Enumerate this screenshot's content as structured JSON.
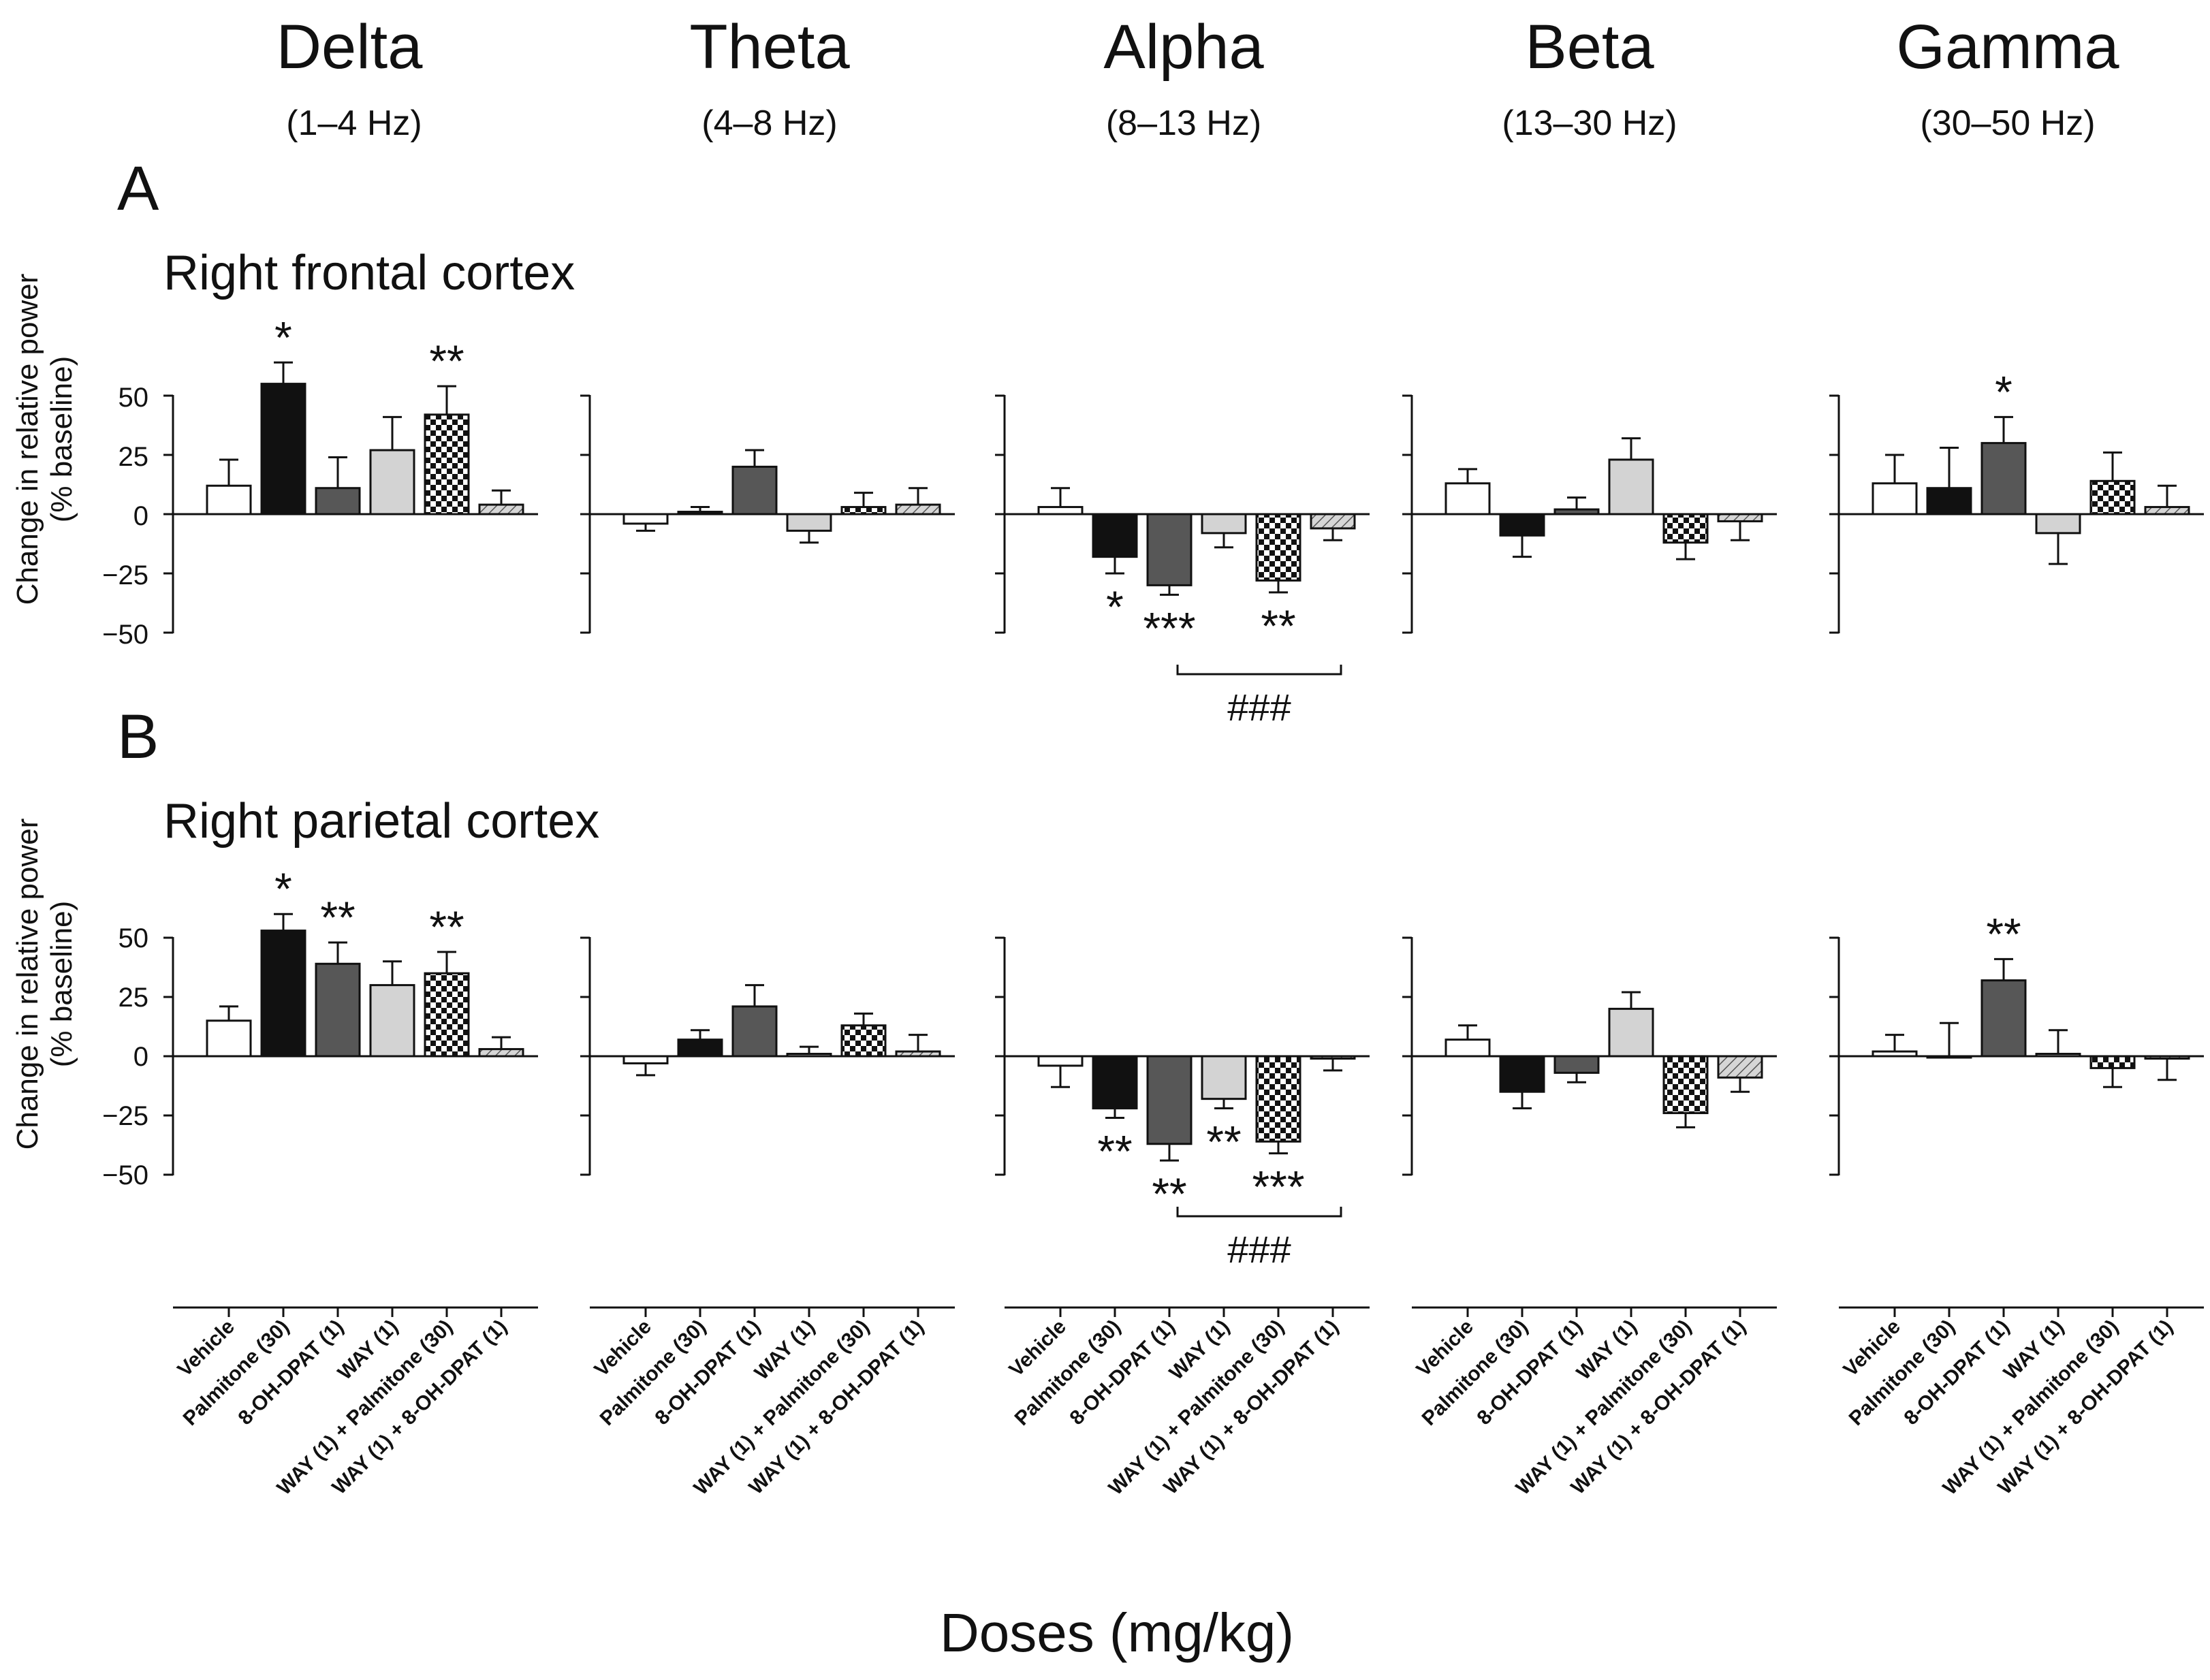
{
  "figure": {
    "panels": [
      "A",
      "B"
    ],
    "regions": [
      "Right frontal cortex",
      "Right parietal cortex"
    ],
    "xlabel": "Doses (mg/kg)",
    "ylabel": [
      "Change in relative power",
      "(% baseline)"
    ],
    "yticks": [
      "50",
      "25",
      "0",
      "−25",
      "−50"
    ]
  },
  "chart_data": {
    "type": "bar",
    "ylim": [
      -50,
      50
    ],
    "yticks": [
      50,
      25,
      0,
      -25,
      -50
    ],
    "grid": false,
    "x_axis_title": "Doses (mg/kg)",
    "y_axis_title": "Change in relative power (% baseline)",
    "categories": [
      "Vehicle",
      "Palmitone (30)",
      "8-OH-DPAT (1)",
      "WAY (1)",
      "WAY (1) + Palmitone (30)",
      "WAY (1) + 8-OH-DPAT (1)"
    ],
    "fills": [
      "white",
      "black",
      "dark-gray",
      "light-gray",
      "checker",
      "hatched"
    ],
    "bands": [
      {
        "name": "Delta",
        "range": "(1–4 Hz)"
      },
      {
        "name": "Theta",
        "range": "(4–8 Hz)"
      },
      {
        "name": "Alpha",
        "range": "(8–13 Hz)"
      },
      {
        "name": "Beta",
        "range": "(13–30 Hz)"
      },
      {
        "name": "Gamma",
        "range": "(30–50 Hz)"
      }
    ],
    "panels": [
      {
        "label": "A",
        "title": "Right frontal cortex",
        "bands": [
          {
            "values": [
              12,
              55,
              11,
              27,
              42,
              4
            ],
            "errors": [
              11,
              9,
              13,
              14,
              12,
              6
            ],
            "stars": [
              "",
              "*",
              "",
              "",
              "**",
              ""
            ]
          },
          {
            "values": [
              -4,
              1,
              20,
              -7,
              3,
              4
            ],
            "errors": [
              3,
              2,
              7,
              5,
              6,
              7
            ],
            "stars": [
              "",
              "",
              "",
              "",
              "",
              ""
            ]
          },
          {
            "values": [
              3,
              -18,
              -30,
              -8,
              -28,
              -6
            ],
            "errors": [
              8,
              7,
              4,
              6,
              5,
              5
            ],
            "stars": [
              "",
              "*",
              "***",
              "",
              "**",
              ""
            ],
            "bracket": {
              "from": 2,
              "to": 5,
              "label": "###"
            }
          },
          {
            "values": [
              13,
              -9,
              2,
              23,
              -12,
              -3
            ],
            "errors": [
              6,
              9,
              5,
              9,
              7,
              8
            ],
            "stars": [
              "",
              "",
              "",
              "",
              "",
              ""
            ]
          },
          {
            "values": [
              13,
              11,
              30,
              -8,
              14,
              3
            ],
            "errors": [
              12,
              17,
              11,
              13,
              12,
              9
            ],
            "stars": [
              "",
              "",
              "*",
              "",
              "",
              ""
            ]
          }
        ]
      },
      {
        "label": "B",
        "title": "Right parietal cortex",
        "bands": [
          {
            "values": [
              15,
              53,
              39,
              30,
              35,
              3
            ],
            "errors": [
              6,
              7,
              9,
              10,
              9,
              5
            ],
            "stars": [
              "",
              "*",
              "**",
              "",
              "**",
              ""
            ]
          },
          {
            "values": [
              -3,
              7,
              21,
              1,
              13,
              2
            ],
            "errors": [
              5,
              4,
              9,
              3,
              5,
              7
            ],
            "stars": [
              "",
              "",
              "",
              "",
              "",
              ""
            ]
          },
          {
            "values": [
              -4,
              -22,
              -37,
              -18,
              -36,
              -1
            ],
            "errors": [
              9,
              4,
              7,
              4,
              5,
              5
            ],
            "stars": [
              "",
              "**",
              "**",
              "**",
              "***",
              ""
            ],
            "bracket": {
              "from": 2,
              "to": 5,
              "label": "###"
            }
          },
          {
            "values": [
              7,
              -15,
              -7,
              20,
              -24,
              -9
            ],
            "errors": [
              6,
              7,
              4,
              7,
              6,
              6
            ],
            "stars": [
              "",
              "",
              "",
              "",
              "",
              ""
            ]
          },
          {
            "values": [
              2,
              0,
              32,
              1,
              -5,
              -1
            ],
            "errors": [
              7,
              14,
              9,
              10,
              8,
              9
            ],
            "stars": [
              "",
              "",
              "**",
              "",
              "",
              ""
            ]
          }
        ]
      }
    ]
  }
}
